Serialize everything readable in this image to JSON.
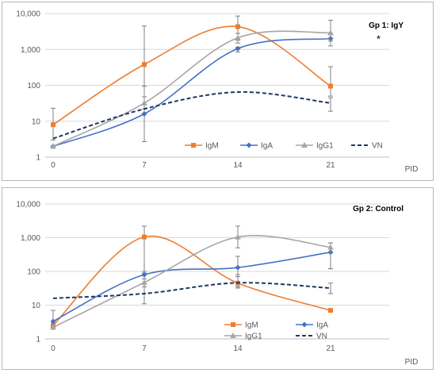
{
  "chart_data": [
    {
      "type": "line",
      "title": "Gp 1: IgY",
      "xlabel": "PID",
      "ylabel": "",
      "x": [
        0,
        7,
        14,
        21
      ],
      "x_tick_labels": [
        "0",
        "7",
        "14",
        "21"
      ],
      "yscale": "log",
      "ylim": [
        1,
        10000
      ],
      "y_tick_labels": [
        "1",
        "10",
        "100",
        "1,000",
        "10,000"
      ],
      "grid": true,
      "legend_position": "bottom-right",
      "annotation": "*",
      "series": [
        {
          "name": "IgM",
          "color": "#ED7D31",
          "marker": "square",
          "dashed": false,
          "values": [
            8,
            380,
            4300,
            95
          ],
          "err_low": [
            3,
            95,
            1800,
            50
          ],
          "err_high": [
            23,
            4500,
            8500,
            330
          ]
        },
        {
          "name": "IgA",
          "color": "#4472C4",
          "marker": "diamond",
          "dashed": false,
          "values": [
            2,
            16,
            1050,
            2000
          ],
          "err_low": [
            2,
            2.7,
            850,
            1250
          ],
          "err_high": [
            2,
            95,
            1150,
            2800
          ]
        },
        {
          "name": "IgG1",
          "color": "#A5A5A5",
          "marker": "triangle",
          "dashed": false,
          "values": [
            2,
            32,
            2100,
            2900
          ],
          "err_low": [
            2,
            22,
            1500,
            1700
          ],
          "err_high": [
            2,
            48,
            2800,
            6500
          ]
        },
        {
          "name": "VN",
          "color": "#1F3864",
          "marker": "none",
          "dashed": true,
          "values": [
            3.3,
            22,
            65,
            32
          ],
          "err_low": [
            null,
            null,
            null,
            19
          ],
          "err_high": [
            null,
            null,
            null,
            45
          ]
        }
      ]
    },
    {
      "type": "line",
      "title": "Gp 2: Control",
      "xlabel": "PID",
      "ylabel": "",
      "x": [
        0,
        7,
        14,
        21
      ],
      "x_tick_labels": [
        "0",
        "7",
        "14",
        "21"
      ],
      "yscale": "log",
      "ylim": [
        1,
        10000
      ],
      "y_tick_labels": [
        "1",
        "10",
        "100",
        "1,000",
        "10,000"
      ],
      "grid": true,
      "legend_position": "bottom-right",
      "series": [
        {
          "name": "IgM",
          "color": "#ED7D31",
          "marker": "square",
          "dashed": false,
          "values": [
            2.5,
            1050,
            45,
            7
          ],
          "err_low": [
            2,
            90,
            32,
            7
          ],
          "err_high": [
            7,
            2200,
            80,
            7
          ]
        },
        {
          "name": "IgA",
          "color": "#4472C4",
          "marker": "diamond",
          "dashed": false,
          "values": [
            3.3,
            80,
            130,
            370
          ],
          "err_low": [
            2.2,
            11,
            35,
            120
          ],
          "err_high": [
            3.3,
            100,
            280,
            700
          ]
        },
        {
          "name": "IgG1",
          "color": "#A5A5A5",
          "marker": "triangle",
          "dashed": false,
          "values": [
            2.2,
            47,
            1050,
            520
          ],
          "err_low": [
            2,
            35,
            500,
            120
          ],
          "err_high": [
            2.2,
            60,
            2200,
            700
          ]
        },
        {
          "name": "VN",
          "color": "#1F3864",
          "marker": "none",
          "dashed": true,
          "values": [
            16,
            22,
            46,
            32
          ],
          "err_low": [
            null,
            null,
            35,
            22
          ],
          "err_high": [
            null,
            null,
            70,
            45
          ]
        }
      ]
    }
  ]
}
